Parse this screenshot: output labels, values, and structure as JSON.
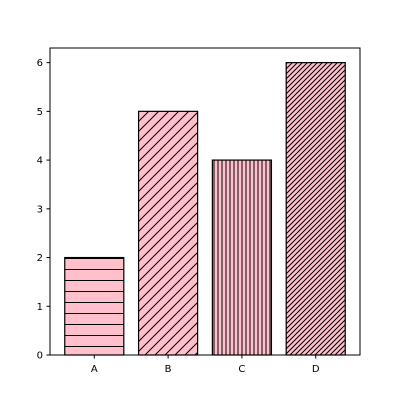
{
  "chart_data": {
    "type": "bar",
    "categories": [
      "A",
      "B",
      "C",
      "D"
    ],
    "values": [
      2,
      5,
      4,
      6
    ],
    "ylim": [
      0,
      6.3
    ],
    "yticks": [
      0,
      1,
      2,
      3,
      4,
      5,
      6
    ],
    "grid": false,
    "bar_color": "#ffc0cb",
    "edge_color": "#000000",
    "hatches": [
      "horizontal",
      "diagonal-forward",
      "vertical",
      "diagonal-forward-dense"
    ]
  }
}
